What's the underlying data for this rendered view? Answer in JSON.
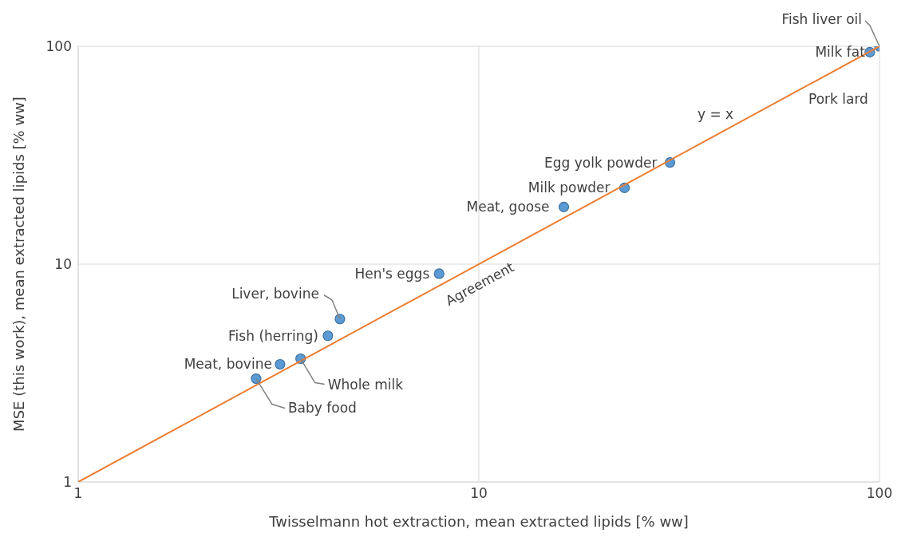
{
  "chart_data": {
    "type": "scatter",
    "xlabel": "Twisselmann hot extraction, mean extracted lipids [% ww]",
    "ylabel": "MSE (this work), mean extracted lipids [% ww]",
    "log": "xy",
    "xlim": [
      1,
      100
    ],
    "ylim": [
      1,
      100
    ],
    "xticks": [
      1,
      10,
      100
    ],
    "yticks": [
      1,
      10,
      100
    ],
    "grid": true,
    "series": [
      {
        "marker": "circle",
        "color": "#5b9bd5",
        "x": [
          2.78,
          3.19,
          3.59,
          4.2,
          4.5,
          7.96,
          16.3,
          23.1,
          30,
          94.6,
          97,
          100
        ],
        "values": [
          2.98,
          3.47,
          3.68,
          4.69,
          5.6,
          9.04,
          18.3,
          22.4,
          29.3,
          94,
          null,
          100
        ]
      },
      {
        "type": "line",
        "marker": "none",
        "color": "#ed7d31",
        "x": [
          1,
          100
        ],
        "values": [
          1,
          100
        ]
      }
    ],
    "annotations": [
      {
        "text": "Baby food",
        "x": 2.78,
        "y": 2.98
      },
      {
        "text": "Meat, bovine",
        "x": 3.19,
        "y": 3.47
      },
      {
        "text": "Whole milk",
        "x": 3.59,
        "y": 3.68
      },
      {
        "text": "Fish (herring)",
        "x": 4.2,
        "y": 4.69
      },
      {
        "text": "Liver, bovine",
        "x": 4.5,
        "y": 5.6
      },
      {
        "text": "Hen's eggs",
        "x": 7.96,
        "y": 9.04
      },
      {
        "text": "Meat, goose",
        "x": 16.3,
        "y": 18.3
      },
      {
        "text": "Milk powder",
        "x": 23.1,
        "y": 22.4
      },
      {
        "text": "Egg yolk powder",
        "x": 30,
        "y": 29.3
      },
      {
        "text": "Milk fat",
        "x": 94.6,
        "y": 94
      },
      "Pork lard",
      {
        "text": "Fish liver oil",
        "x": 100,
        "y": 100
      },
      {
        "text": "Agreement",
        "x": 10,
        "y": 10
      },
      "y = x"
    ]
  }
}
